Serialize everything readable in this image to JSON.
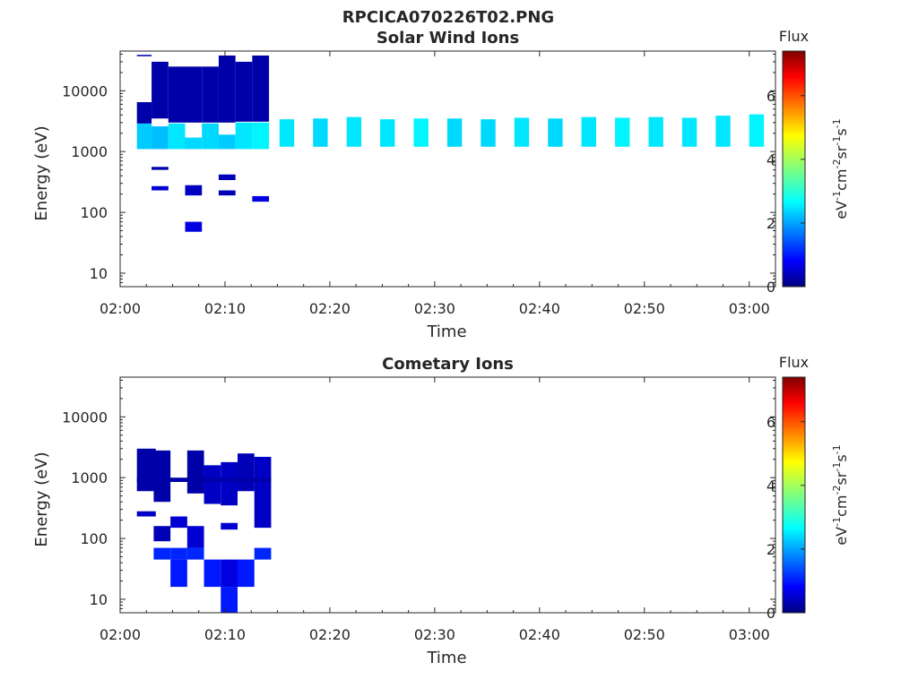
{
  "figure_title": "RPCICA070226T02.PNG",
  "chart_data": [
    {
      "type": "heatmap",
      "title": "Solar Wind Ions",
      "xlabel": "Time",
      "ylabel": "Energy (eV)",
      "x_ticks": [
        "02:00",
        "02:10",
        "02:20",
        "02:30",
        "02:40",
        "02:50",
        "03:00"
      ],
      "y_ticks": [
        "10",
        "100",
        "1000",
        "10000"
      ],
      "y_scale": "log",
      "ylim": [
        6,
        45000
      ],
      "xlim_minutes": [
        0,
        62.5
      ],
      "colorbar": {
        "title": "Flux",
        "label": "eV-1cm-2sr-1s-1",
        "ticks": [
          "0",
          "2",
          "4",
          "6"
        ],
        "range": [
          0,
          7.4
        ]
      },
      "cells": [
        {
          "t0": 1.6,
          "t1": 3.0,
          "e0": 1100,
          "e1": 2900,
          "v": 2.4
        },
        {
          "t0": 1.6,
          "t1": 3.0,
          "e0": 2900,
          "e1": 6500,
          "v": 0.3
        },
        {
          "t0": 1.6,
          "t1": 3.0,
          "e0": 37000,
          "e1": 39000,
          "v": 0.3
        },
        {
          "t0": 3.0,
          "t1": 4.6,
          "e0": 1100,
          "e1": 2600,
          "v": 2.3
        },
        {
          "t0": 3.0,
          "t1": 4.6,
          "e0": 3500,
          "e1": 30000,
          "v": 0.3
        },
        {
          "t0": 3.0,
          "t1": 4.6,
          "e0": 230,
          "e1": 270,
          "v": 0.6
        },
        {
          "t0": 3.0,
          "t1": 4.6,
          "e0": 500,
          "e1": 560,
          "v": 0.3
        },
        {
          "t0": 4.6,
          "t1": 6.2,
          "e0": 1100,
          "e1": 2900,
          "v": 2.6
        },
        {
          "t0": 4.6,
          "t1": 6.2,
          "e0": 3000,
          "e1": 25000,
          "v": 0.3
        },
        {
          "t0": 6.2,
          "t1": 7.8,
          "e0": 1100,
          "e1": 1700,
          "v": 2.5
        },
        {
          "t0": 6.2,
          "t1": 7.8,
          "e0": 3000,
          "e1": 25000,
          "v": 0.3
        },
        {
          "t0": 6.2,
          "t1": 7.8,
          "e0": 190,
          "e1": 280,
          "v": 0.5
        },
        {
          "t0": 6.2,
          "t1": 7.8,
          "e0": 48,
          "e1": 70,
          "v": 0.7
        },
        {
          "t0": 7.8,
          "t1": 9.4,
          "e0": 1100,
          "e1": 2900,
          "v": 2.5
        },
        {
          "t0": 7.8,
          "t1": 9.4,
          "e0": 3000,
          "e1": 25000,
          "v": 0.3
        },
        {
          "t0": 9.4,
          "t1": 11.0,
          "e0": 1100,
          "e1": 1900,
          "v": 2.4
        },
        {
          "t0": 9.4,
          "t1": 11.0,
          "e0": 3000,
          "e1": 38000,
          "v": 0.3
        },
        {
          "t0": 9.4,
          "t1": 11.0,
          "e0": 340,
          "e1": 420,
          "v": 0.4
        },
        {
          "t0": 9.4,
          "t1": 11.0,
          "e0": 190,
          "e1": 230,
          "v": 0.4
        },
        {
          "t0": 11.0,
          "t1": 12.6,
          "e0": 1100,
          "e1": 3000,
          "v": 2.6
        },
        {
          "t0": 11.0,
          "t1": 12.6,
          "e0": 3100,
          "e1": 30000,
          "v": 0.3
        },
        {
          "t0": 12.6,
          "t1": 14.2,
          "e0": 1100,
          "e1": 3000,
          "v": 2.7
        },
        {
          "t0": 12.6,
          "t1": 14.2,
          "e0": 3100,
          "e1": 38000,
          "v": 0.3
        },
        {
          "t0": 12.6,
          "t1": 14.2,
          "e0": 150,
          "e1": 185,
          "v": 0.7
        },
        {
          "t0": 15.2,
          "t1": 16.6,
          "e0": 1200,
          "e1": 3400,
          "v": 2.6
        },
        {
          "t0": 18.4,
          "t1": 19.8,
          "e0": 1200,
          "e1": 3500,
          "v": 2.5
        },
        {
          "t0": 21.6,
          "t1": 23.0,
          "e0": 1200,
          "e1": 3700,
          "v": 2.6
        },
        {
          "t0": 24.8,
          "t1": 26.2,
          "e0": 1200,
          "e1": 3400,
          "v": 2.6
        },
        {
          "t0": 28.0,
          "t1": 29.4,
          "e0": 1200,
          "e1": 3500,
          "v": 2.7
        },
        {
          "t0": 31.2,
          "t1": 32.6,
          "e0": 1200,
          "e1": 3500,
          "v": 2.5
        },
        {
          "t0": 34.4,
          "t1": 35.8,
          "e0": 1200,
          "e1": 3400,
          "v": 2.5
        },
        {
          "t0": 37.6,
          "t1": 39.0,
          "e0": 1200,
          "e1": 3600,
          "v": 2.6
        },
        {
          "t0": 40.8,
          "t1": 42.2,
          "e0": 1200,
          "e1": 3500,
          "v": 2.5
        },
        {
          "t0": 44.0,
          "t1": 45.4,
          "e0": 1200,
          "e1": 3700,
          "v": 2.6
        },
        {
          "t0": 47.2,
          "t1": 48.6,
          "e0": 1200,
          "e1": 3600,
          "v": 2.7
        },
        {
          "t0": 50.4,
          "t1": 51.8,
          "e0": 1200,
          "e1": 3700,
          "v": 2.6
        },
        {
          "t0": 53.6,
          "t1": 55.0,
          "e0": 1200,
          "e1": 3600,
          "v": 2.6
        },
        {
          "t0": 56.8,
          "t1": 58.2,
          "e0": 1200,
          "e1": 3900,
          "v": 2.6
        },
        {
          "t0": 60.0,
          "t1": 61.4,
          "e0": 1200,
          "e1": 4100,
          "v": 2.7
        }
      ]
    },
    {
      "type": "heatmap",
      "title": "Cometary Ions",
      "xlabel": "Time",
      "ylabel": "Energy (eV)",
      "x_ticks": [
        "02:00",
        "02:10",
        "02:20",
        "02:30",
        "02:40",
        "02:50",
        "03:00"
      ],
      "y_ticks": [
        "10",
        "100",
        "1000",
        "10000"
      ],
      "y_scale": "log",
      "ylim": [
        6,
        45000
      ],
      "xlim_minutes": [
        0,
        62.5
      ],
      "colorbar": {
        "title": "Flux",
        "label": "eV-1cm-2sr-1s-1",
        "ticks": [
          "0",
          "2",
          "4",
          "6"
        ],
        "range": [
          0,
          7.4
        ]
      },
      "cells": [
        {
          "t0": 1.6,
          "t1": 3.4,
          "e0": 600,
          "e1": 3000,
          "v": 0.3
        },
        {
          "t0": 1.6,
          "t1": 3.4,
          "e0": 230,
          "e1": 280,
          "v": 0.5
        },
        {
          "t0": 3.2,
          "t1": 4.8,
          "e0": 400,
          "e1": 2800,
          "v": 0.3
        },
        {
          "t0": 3.2,
          "t1": 4.8,
          "e0": 90,
          "e1": 160,
          "v": 0.4
        },
        {
          "t0": 3.2,
          "t1": 4.8,
          "e0": 45,
          "e1": 70,
          "v": 1.2
        },
        {
          "t0": 4.8,
          "t1": 6.4,
          "e0": 150,
          "e1": 230,
          "v": 0.6
        },
        {
          "t0": 4.8,
          "t1": 6.4,
          "e0": 45,
          "e1": 70,
          "v": 1.2
        },
        {
          "t0": 4.8,
          "t1": 6.4,
          "e0": 16,
          "e1": 45,
          "v": 1.1
        },
        {
          "t0": 6.4,
          "t1": 8.0,
          "e0": 550,
          "e1": 2800,
          "v": 0.3
        },
        {
          "t0": 6.4,
          "t1": 8.0,
          "e0": 70,
          "e1": 160,
          "v": 0.6
        },
        {
          "t0": 6.4,
          "t1": 8.0,
          "e0": 45,
          "e1": 70,
          "v": 1.2
        },
        {
          "t0": 8.0,
          "t1": 9.6,
          "e0": 370,
          "e1": 1600,
          "v": 0.5
        },
        {
          "t0": 8.0,
          "t1": 9.6,
          "e0": 16,
          "e1": 45,
          "v": 1.1
        },
        {
          "t0": 9.6,
          "t1": 11.2,
          "e0": 350,
          "e1": 1800,
          "v": 0.5
        },
        {
          "t0": 9.6,
          "t1": 11.2,
          "e0": 140,
          "e1": 180,
          "v": 0.6
        },
        {
          "t0": 9.6,
          "t1": 11.2,
          "e0": 16,
          "e1": 45,
          "v": 0.7
        },
        {
          "t0": 9.6,
          "t1": 11.2,
          "e0": 6,
          "e1": 16,
          "v": 1.1
        },
        {
          "t0": 11.2,
          "t1": 12.8,
          "e0": 600,
          "e1": 2500,
          "v": 0.4
        },
        {
          "t0": 11.2,
          "t1": 12.8,
          "e0": 16,
          "e1": 45,
          "v": 1.1
        },
        {
          "t0": 12.8,
          "t1": 14.4,
          "e0": 150,
          "e1": 2200,
          "v": 0.5
        },
        {
          "t0": 12.8,
          "t1": 14.4,
          "e0": 45,
          "e1": 70,
          "v": 1.2
        },
        {
          "t0": 1.6,
          "t1": 14.4,
          "e0": 850,
          "e1": 1000,
          "v": 0.3
        }
      ]
    }
  ]
}
